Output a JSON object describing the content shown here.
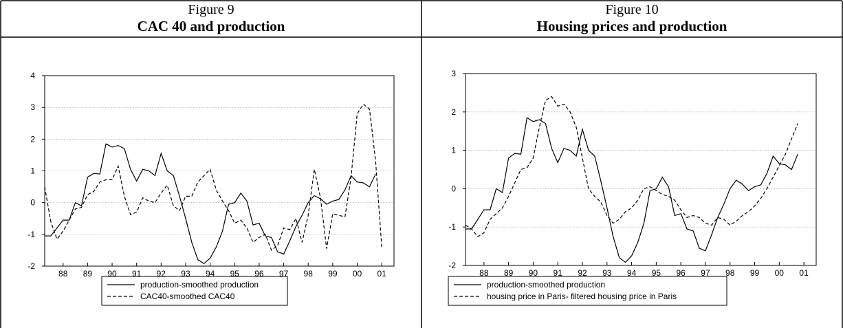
{
  "chart_data": [
    {
      "type": "line",
      "title": "Figure 9",
      "subtitle": "CAC 40 and production",
      "x": [
        87.25,
        87.5,
        87.75,
        88,
        88.25,
        88.5,
        88.75,
        89,
        89.25,
        89.5,
        89.75,
        90,
        90.25,
        90.5,
        90.75,
        91,
        91.25,
        91.5,
        91.75,
        92,
        92.25,
        92.5,
        92.75,
        93,
        93.25,
        93.5,
        93.75,
        94,
        94.25,
        94.5,
        94.75,
        95,
        95.25,
        95.5,
        95.75,
        96,
        96.25,
        96.5,
        96.75,
        97,
        97.25,
        97.5,
        97.75,
        98,
        98.25,
        98.5,
        98.75,
        99,
        99.25,
        99.5,
        99.75,
        100,
        100.25,
        100.5,
        100.75,
        101
      ],
      "xlim": [
        87.25,
        101.5
      ],
      "xticks": [
        88,
        89,
        90,
        91,
        92,
        93,
        94,
        95,
        96,
        97,
        98,
        99,
        {
          "value": 100,
          "label": "00"
        },
        {
          "value": 101,
          "label": "01"
        }
      ],
      "ylim": [
        -2,
        4
      ],
      "yticks": [
        -2,
        -1,
        0,
        1,
        2,
        3,
        4
      ],
      "grid": true,
      "series": [
        {
          "name": "production-smoothed production",
          "color": "#000000",
          "dash": "solid",
          "values": [
            -1.05,
            -1.05,
            -0.8,
            -0.55,
            -0.55,
            0,
            -0.1,
            0.8,
            0.92,
            0.9,
            1.85,
            1.75,
            1.8,
            1.7,
            1.05,
            0.68,
            1.05,
            1,
            0.85,
            1.55,
            1,
            0.85,
            0.2,
            -0.5,
            -1.25,
            -1.8,
            -1.92,
            -1.75,
            -1.4,
            -0.9,
            -0.05,
            0,
            0.3,
            0.05,
            -0.7,
            -0.65,
            -1.05,
            -1.1,
            -1.55,
            -1.62,
            -1.2,
            -0.75,
            -0.4,
            0,
            0.22,
            0.12,
            -0.05,
            0.05,
            0.1,
            0.4,
            0.85,
            0.65,
            0.62,
            0.5,
            0.9,
            null
          ]
        },
        {
          "name": "CAC40-smoothed CAC40",
          "color": "#000000",
          "dash": "dashed",
          "values": [
            0.5,
            -0.6,
            -1.15,
            -0.9,
            -0.55,
            -0.2,
            -0.15,
            0.25,
            0.35,
            0.65,
            0.72,
            0.72,
            1.15,
            0.2,
            -0.38,
            -0.3,
            0.15,
            0.05,
            0,
            0.3,
            0.55,
            -0.1,
            -0.25,
            0.2,
            0.2,
            0.65,
            0.85,
            1.05,
            0.4,
            0.05,
            -0.25,
            -0.65,
            -0.55,
            -0.8,
            -1.25,
            -1.1,
            -1,
            -1.5,
            -1.35,
            -0.8,
            -0.85,
            -0.5,
            -1.25,
            -0.4,
            1.05,
            0.15,
            -1.45,
            -0.35,
            -0.4,
            -0.45,
            0.8,
            2.8,
            3.1,
            2.95,
            1.3,
            -1.4
          ]
        }
      ]
    },
    {
      "type": "line",
      "title": "Figure 10",
      "subtitle": "Housing prices and production",
      "x": [
        87.25,
        87.5,
        87.75,
        88,
        88.25,
        88.5,
        88.75,
        89,
        89.25,
        89.5,
        89.75,
        90,
        90.25,
        90.5,
        90.75,
        91,
        91.25,
        91.5,
        91.75,
        92,
        92.25,
        92.5,
        92.75,
        93,
        93.25,
        93.5,
        93.75,
        94,
        94.25,
        94.5,
        94.75,
        95,
        95.25,
        95.5,
        95.75,
        96,
        96.25,
        96.5,
        96.75,
        97,
        97.25,
        97.5,
        97.75,
        98,
        98.25,
        98.5,
        98.75,
        99,
        99.25,
        99.5,
        99.75,
        100,
        100.25,
        100.5,
        100.75,
        101
      ],
      "xlim": [
        87.25,
        101.5
      ],
      "xticks": [
        88,
        89,
        90,
        91,
        92,
        93,
        94,
        95,
        96,
        97,
        98,
        99,
        {
          "value": 100,
          "label": "00"
        },
        {
          "value": 101,
          "label": "01"
        }
      ],
      "ylim": [
        -2,
        3
      ],
      "yticks": [
        -2,
        -1,
        0,
        1,
        2,
        3
      ],
      "grid": true,
      "series": [
        {
          "name": "production-smoothed production",
          "color": "#000000",
          "dash": "solid",
          "values": [
            -1.05,
            -1.05,
            -0.8,
            -0.55,
            -0.55,
            0,
            -0.1,
            0.8,
            0.92,
            0.9,
            1.85,
            1.75,
            1.8,
            1.7,
            1.05,
            0.68,
            1.05,
            1,
            0.85,
            1.55,
            1,
            0.85,
            0.2,
            -0.5,
            -1.25,
            -1.8,
            -1.92,
            -1.75,
            -1.4,
            -0.9,
            -0.05,
            0,
            0.3,
            0.05,
            -0.7,
            -0.65,
            -1.05,
            -1.1,
            -1.55,
            -1.62,
            -1.2,
            -0.75,
            -0.4,
            0,
            0.22,
            0.12,
            -0.05,
            0.05,
            0.1,
            0.4,
            0.85,
            0.65,
            0.62,
            0.5,
            0.9,
            null
          ]
        },
        {
          "name": "housing price in Paris- filtered housing price in Paris",
          "color": "#000000",
          "dash": "dashed",
          "values": [
            -0.95,
            -1.05,
            -1.25,
            -1.15,
            -0.8,
            -0.65,
            -0.5,
            -0.2,
            0.15,
            0.5,
            0.55,
            0.8,
            1.6,
            2.3,
            2.4,
            2.15,
            2.2,
            2,
            1.6,
            0.8,
            0,
            -0.2,
            -0.35,
            -0.7,
            -0.9,
            -0.8,
            -0.6,
            -0.5,
            -0.3,
            0,
            0.05,
            -0.05,
            -0.15,
            -0.2,
            -0.3,
            -0.55,
            -0.75,
            -0.7,
            -0.75,
            -0.9,
            -0.95,
            -0.75,
            -0.8,
            -0.95,
            -0.85,
            -0.7,
            -0.6,
            -0.45,
            -0.25,
            0,
            0.3,
            0.6,
            0.9,
            1.3,
            1.7,
            null
          ]
        }
      ]
    }
  ]
}
